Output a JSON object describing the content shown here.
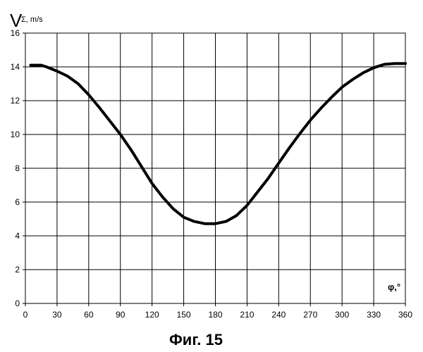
{
  "chart_data": {
    "type": "line",
    "title": "",
    "ylabel": {
      "main": "V",
      "sub": "Σ, m/s"
    },
    "xlabel": "φ,°",
    "caption": "Фиг. 15",
    "xlim": [
      0,
      360
    ],
    "ylim": [
      0,
      16
    ],
    "xticks": [
      0,
      30,
      60,
      90,
      120,
      150,
      180,
      210,
      240,
      270,
      300,
      330,
      360
    ],
    "yticks": [
      0,
      2,
      4,
      6,
      8,
      10,
      12,
      14,
      16
    ],
    "grid": true,
    "line_color": "#000000",
    "series": [
      {
        "x": [
          5,
          10,
          15,
          20,
          30,
          40,
          50,
          60,
          70,
          80,
          90,
          100,
          110,
          120,
          130,
          140,
          150,
          160,
          170,
          180,
          190,
          200,
          210,
          220,
          230,
          240,
          250,
          260,
          270,
          280,
          290,
          300,
          310,
          320,
          330,
          340,
          350,
          355,
          360
        ],
        "y": [
          14.1,
          14.1,
          14.1,
          14.0,
          13.75,
          13.45,
          13.0,
          12.35,
          11.6,
          10.8,
          10.0,
          9.1,
          8.1,
          7.1,
          6.3,
          5.6,
          5.1,
          4.85,
          4.72,
          4.72,
          4.85,
          5.2,
          5.8,
          6.6,
          7.4,
          8.3,
          9.2,
          10.05,
          10.85,
          11.55,
          12.2,
          12.8,
          13.25,
          13.65,
          13.95,
          14.15,
          14.2,
          14.2,
          14.2
        ]
      }
    ]
  }
}
